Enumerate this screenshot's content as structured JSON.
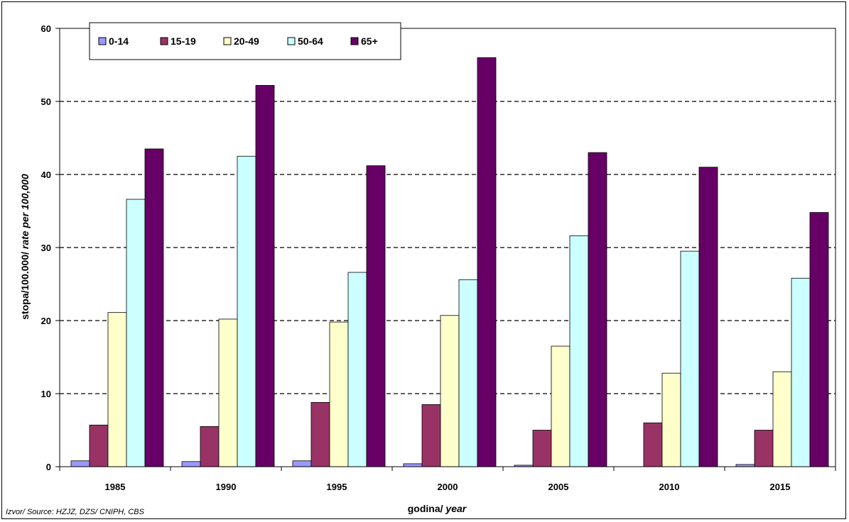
{
  "chart_data": {
    "type": "bar",
    "categories": [
      "1985",
      "1990",
      "1995",
      "2000",
      "2005",
      "2010",
      "2015"
    ],
    "series": [
      {
        "name": "0-14",
        "color": "#9999ff",
        "values": [
          0.8,
          0.7,
          0.8,
          0.4,
          0.2,
          0,
          0.3
        ]
      },
      {
        "name": "15-19",
        "color": "#993366",
        "values": [
          5.7,
          5.5,
          8.8,
          8.5,
          5.0,
          6.0,
          5.0
        ]
      },
      {
        "name": "20-49",
        "color": "#ffffcc",
        "values": [
          21.1,
          20.2,
          19.8,
          20.7,
          16.5,
          12.8,
          13.0
        ]
      },
      {
        "name": "50-64",
        "color": "#ccffff",
        "values": [
          36.6,
          42.5,
          26.6,
          25.6,
          31.6,
          29.5,
          25.8
        ]
      },
      {
        "name": "65+",
        "color": "#660066",
        "values": [
          43.5,
          52.2,
          41.2,
          56.0,
          43.0,
          41.0,
          34.8
        ]
      }
    ],
    "ylim": [
      0,
      60
    ],
    "yticks": [
      "0",
      "10",
      "20",
      "30",
      "40",
      "50",
      "60"
    ],
    "ylabel_main": "stopa/100.000/ ",
    "ylabel_italic": "rate per 100,000",
    "xlabel_main": "godina/ ",
    "xlabel_italic": "year",
    "grid": "horizontal dashed",
    "legend_position": "top-left"
  },
  "source_note": "Izvor/ Source: HZJZ, DZS/ CNIPH, CBS"
}
